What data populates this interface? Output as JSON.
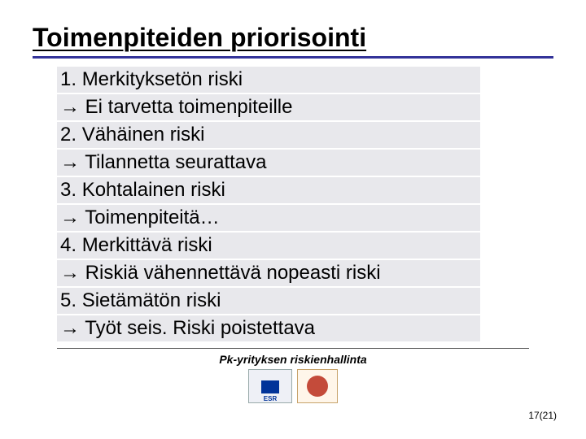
{
  "title": "Toimenpiteiden priorisointi",
  "arrow": "→",
  "items": [
    {
      "num": "1.",
      "label": "Merkityksetön riski",
      "action": "Ei tarvetta toimenpiteille"
    },
    {
      "num": "2.",
      "label": "Vähäinen riski",
      "action": "Tilannetta seurattava"
    },
    {
      "num": "3.",
      "label": "Kohtalainen riski",
      "action": "Toimenpiteitä…"
    },
    {
      "num": "4.",
      "label": "Merkittävä riski",
      "action": "Riskiä vähennettävä nopeasti riski"
    },
    {
      "num": "5.",
      "label": "Sietämätön riski",
      "action": "Työt seis. Riski poistettava"
    }
  ],
  "footer_title": "Pk-yrityksen riskienhallinta",
  "logos": {
    "esr_label": "ESR"
  },
  "page_number": "17(21)",
  "colors": {
    "rule_blue": "#333399",
    "line_bg": "#e8e8ec",
    "text": "#000000",
    "bg": "#ffffff"
  },
  "typography": {
    "title_fontsize": 32,
    "body_fontsize": 24,
    "footer_fontsize": 14
  }
}
